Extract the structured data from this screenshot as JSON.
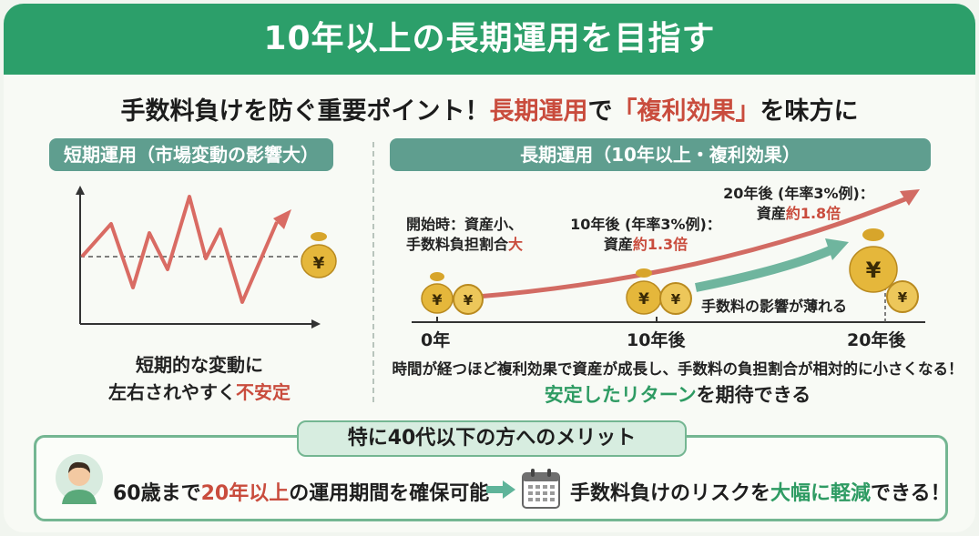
{
  "header": {
    "title": "10年以上の長期運用を目指す"
  },
  "subtitle": {
    "prefix": "手数料負けを防ぐ重要ポイント！",
    "highlight1": "長期運用",
    "mid": "で",
    "highlight2": "「複利効果」",
    "suffix": "を味方に"
  },
  "left_panel": {
    "title": "短期運用（市場変動の影響大）",
    "money_symbol": "¥",
    "caption_line1": "短期的な変動に",
    "caption_line2_prefix": "左右されやすく",
    "caption_line2_highlight": "不安定"
  },
  "right_panel": {
    "title": "長期運用（10年以上・複利効果）",
    "start_label_line1": "開始時：資産小、",
    "start_label_line2_prefix": "手数料負担割合",
    "start_label_line2_highlight": "大",
    "mid_label_line1": "10年後 (年率3%例)：",
    "mid_label_line2_prefix": "資産",
    "mid_label_line2_highlight": "約1.3倍",
    "end_label_line1": "20年後 (年率3%例)：",
    "end_label_line2_prefix": "資産",
    "end_label_line2_highlight": "約1.8倍",
    "fee_label": "手数料の影響が薄れる",
    "x_axis_labels": [
      "0年",
      "10年後",
      "20年後"
    ],
    "money_symbol": "¥",
    "note": "時間が経つほど複利効果で資産が成長し、手数料の負担割合が相対的に小さくなる！",
    "note2_highlight": "安定したリターン",
    "note2_suffix": "を期待できる"
  },
  "benefit": {
    "tab_title": "特に40代以下の方へのメリット",
    "text1_prefix": "60歳まで",
    "text1_highlight": "20年以上",
    "text1_suffix": "の運用期間を確保可能",
    "text2_prefix": "手数料負けのリスクを",
    "text2_highlight": "大幅に軽減",
    "text2_suffix": "できる！",
    "icons": [
      "person-avatar-icon",
      "arrow-right-icon",
      "calendar-icon"
    ]
  },
  "colors": {
    "header_green": "#2c9f6a",
    "accent_red": "#c94c3d",
    "accent_green": "#2e9b63",
    "panel_head": "#5f9e8f",
    "gold": "#e5b73b"
  }
}
